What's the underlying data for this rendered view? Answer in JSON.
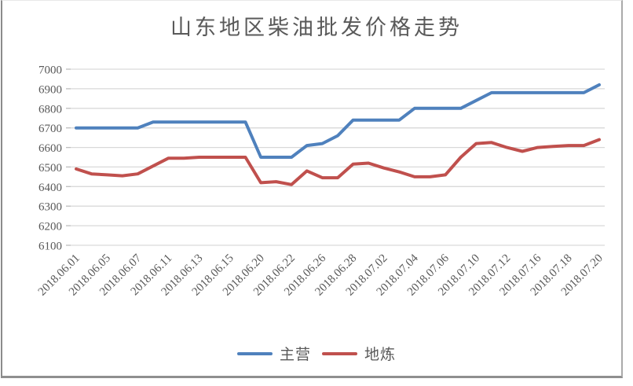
{
  "chart_data": {
    "type": "line",
    "title": "山东地区柴油批发价格走势",
    "xlabel": "",
    "ylabel": "",
    "ylim": [
      6100,
      7000
    ],
    "ytick_step": 100,
    "grid": true,
    "legend_position": "bottom",
    "x_labels_note": "axis labels shown on every other data point; empty string = unlabeled point",
    "categories": [
      "2018.06.01",
      "",
      "2018.06.05",
      "",
      "2018.06.07",
      "",
      "2018.06.11",
      "",
      "2018.06.13",
      "",
      "2018.06.15",
      "",
      "2018.06.20",
      "",
      "2018.06.22",
      "",
      "2018.06.26",
      "",
      "2018.06.28",
      "",
      "2018.07.02",
      "",
      "2018.07.04",
      "",
      "2018.07.06",
      "",
      "2018.07.10",
      "",
      "2018.07.12",
      "",
      "2018.07.16",
      "",
      "2018.07.18",
      "",
      "2018.07.20"
    ],
    "series": [
      {
        "name": "主营",
        "color": "#4F81BD",
        "values": [
          6700,
          6700,
          6700,
          6700,
          6700,
          6730,
          6730,
          6730,
          6730,
          6730,
          6730,
          6730,
          6550,
          6550,
          6550,
          6610,
          6620,
          6660,
          6740,
          6740,
          6740,
          6740,
          6800,
          6800,
          6800,
          6800,
          6840,
          6880,
          6880,
          6880,
          6880,
          6880,
          6880,
          6880,
          6920
        ]
      },
      {
        "name": "地炼",
        "color": "#C0504D",
        "values": [
          6490,
          6465,
          6460,
          6455,
          6465,
          6505,
          6545,
          6545,
          6550,
          6550,
          6550,
          6550,
          6420,
          6425,
          6410,
          6480,
          6445,
          6445,
          6515,
          6520,
          6495,
          6475,
          6450,
          6450,
          6460,
          6550,
          6620,
          6625,
          6600,
          6580,
          6600,
          6605,
          6610,
          6610,
          6640
        ]
      }
    ],
    "colors": {
      "grid": "#d9d9d9",
      "tick_stub": "#bdbdbd",
      "text": "#595959",
      "background": "#ffffff"
    }
  }
}
